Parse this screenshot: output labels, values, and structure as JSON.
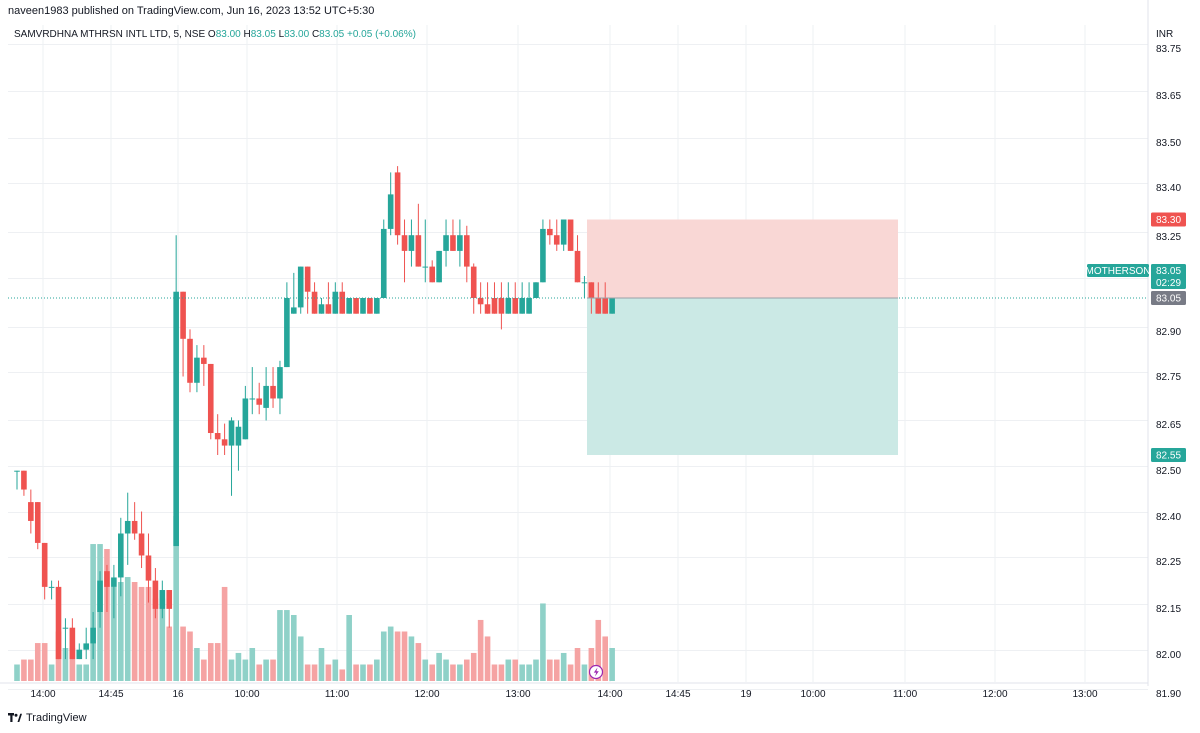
{
  "header": {
    "published": "naveen1983 published on TradingView.com, Jun 16, 2023 13:52 UTC+5:30"
  },
  "legend": {
    "symbol": "SAMVRDHNA MTHRSN INTL LTD, 5, NSE",
    "open_label": "O",
    "open": "83.00",
    "high_label": "H",
    "high": "83.05",
    "low_label": "L",
    "low": "83.00",
    "close_label": "C",
    "close": "83.05",
    "change": "+0.05 (+0.06%)"
  },
  "currency": "INR",
  "brand": "TradingView",
  "colors": {
    "up": "#26a69a",
    "down": "#ef5350",
    "up_volume": "#8fd1c8",
    "down_volume": "#f5a3a3",
    "stop_zone": "#f9d7d5",
    "target_zone": "#cbe9e5",
    "grid": "#eef0f3",
    "current_line": "#26a69a",
    "timer_tag": "#787b86"
  },
  "chart_data": {
    "type": "candlestick",
    "interval": "5",
    "exchange": "NSE",
    "y_ticks": [
      "83.75",
      "83.65",
      "83.50",
      "83.40",
      "83.25",
      "83.00",
      "82.90",
      "82.75",
      "82.65",
      "82.50",
      "82.40",
      "82.25",
      "82.15",
      "82.00",
      "81.90"
    ],
    "x_ticks": [
      "14:00",
      "14:45",
      "16",
      "10:00",
      "11:00",
      "12:00",
      "13:00",
      "14:00",
      "14:45",
      "19",
      "10:00",
      "11:00",
      "12:00",
      "13:00"
    ],
    "candles": [
      {
        "o": 82.5,
        "h": 82.5,
        "l": 82.44,
        "c": 82.5
      },
      {
        "o": 82.5,
        "h": 82.5,
        "l": 82.42,
        "c": 82.44
      },
      {
        "o": 82.4,
        "h": 82.44,
        "l": 82.3,
        "c": 82.34
      },
      {
        "o": 82.4,
        "h": 82.4,
        "l": 82.25,
        "c": 82.27
      },
      {
        "o": 82.27,
        "h": 82.27,
        "l": 82.09,
        "c": 82.13
      },
      {
        "o": 82.13,
        "h": 82.15,
        "l": 82.09,
        "c": 82.13
      },
      {
        "o": 82.13,
        "h": 82.15,
        "l": 81.9,
        "c": 81.9
      },
      {
        "o": 82.0,
        "h": 82.03,
        "l": 81.9,
        "c": 82.0
      },
      {
        "o": 82.0,
        "h": 82.03,
        "l": 81.9,
        "c": 81.9
      },
      {
        "o": 81.9,
        "h": 81.95,
        "l": 81.9,
        "c": 81.93
      },
      {
        "o": 81.93,
        "h": 82.0,
        "l": 81.9,
        "c": 81.95
      },
      {
        "o": 81.95,
        "h": 82.05,
        "l": 81.9,
        "c": 82.0
      },
      {
        "o": 82.05,
        "h": 82.18,
        "l": 82.0,
        "c": 82.15
      },
      {
        "o": 82.18,
        "h": 82.2,
        "l": 82.05,
        "c": 82.13
      },
      {
        "o": 82.13,
        "h": 82.2,
        "l": 82.03,
        "c": 82.16
      },
      {
        "o": 82.16,
        "h": 82.35,
        "l": 82.1,
        "c": 82.3
      },
      {
        "o": 82.3,
        "h": 82.43,
        "l": 82.2,
        "c": 82.34
      },
      {
        "o": 82.34,
        "h": 82.4,
        "l": 82.28,
        "c": 82.3
      },
      {
        "o": 82.3,
        "h": 82.37,
        "l": 82.19,
        "c": 82.23
      },
      {
        "o": 82.23,
        "h": 82.3,
        "l": 82.08,
        "c": 82.15
      },
      {
        "o": 82.15,
        "h": 82.19,
        "l": 82.03,
        "c": 82.06
      },
      {
        "o": 82.06,
        "h": 82.15,
        "l": 82.03,
        "c": 82.12
      },
      {
        "o": 82.12,
        "h": 82.12,
        "l": 82.0,
        "c": 82.06
      },
      {
        "o": 82.26,
        "h": 83.25,
        "l": 82.26,
        "c": 83.07
      },
      {
        "o": 83.07,
        "h": 83.07,
        "l": 82.8,
        "c": 82.92
      },
      {
        "o": 82.92,
        "h": 82.95,
        "l": 82.75,
        "c": 82.78
      },
      {
        "o": 82.78,
        "h": 82.9,
        "l": 82.75,
        "c": 82.86
      },
      {
        "o": 82.86,
        "h": 82.9,
        "l": 82.77,
        "c": 82.84
      },
      {
        "o": 82.84,
        "h": 82.84,
        "l": 82.6,
        "c": 82.62
      },
      {
        "o": 82.62,
        "h": 82.68,
        "l": 82.55,
        "c": 82.6
      },
      {
        "o": 82.6,
        "h": 82.65,
        "l": 82.55,
        "c": 82.58
      },
      {
        "o": 82.58,
        "h": 82.67,
        "l": 82.42,
        "c": 82.66
      },
      {
        "o": 82.58,
        "h": 82.66,
        "l": 82.5,
        "c": 82.64
      },
      {
        "o": 82.6,
        "h": 82.77,
        "l": 82.6,
        "c": 82.73
      },
      {
        "o": 82.73,
        "h": 82.83,
        "l": 82.68,
        "c": 82.73
      },
      {
        "o": 82.73,
        "h": 82.78,
        "l": 82.68,
        "c": 82.71
      },
      {
        "o": 82.7,
        "h": 82.83,
        "l": 82.66,
        "c": 82.77
      },
      {
        "o": 82.77,
        "h": 82.83,
        "l": 82.7,
        "c": 82.73
      },
      {
        "o": 82.73,
        "h": 82.85,
        "l": 82.68,
        "c": 82.83
      },
      {
        "o": 82.83,
        "h": 83.1,
        "l": 82.83,
        "c": 83.05
      },
      {
        "o": 83.0,
        "h": 83.13,
        "l": 83.0,
        "c": 83.02
      },
      {
        "o": 83.02,
        "h": 83.15,
        "l": 83.0,
        "c": 83.15
      },
      {
        "o": 83.15,
        "h": 83.15,
        "l": 83.0,
        "c": 83.07
      },
      {
        "o": 83.07,
        "h": 83.1,
        "l": 83.0,
        "c": 83.0
      },
      {
        "o": 83.0,
        "h": 83.05,
        "l": 83.0,
        "c": 83.03
      },
      {
        "o": 83.03,
        "h": 83.1,
        "l": 83.0,
        "c": 83.0
      },
      {
        "o": 83.0,
        "h": 83.1,
        "l": 83.0,
        "c": 83.07
      },
      {
        "o": 83.07,
        "h": 83.1,
        "l": 83.0,
        "c": 83.0
      },
      {
        "o": 83.0,
        "h": 83.05,
        "l": 83.0,
        "c": 83.05
      },
      {
        "o": 83.05,
        "h": 83.05,
        "l": 83.0,
        "c": 83.0
      },
      {
        "o": 83.0,
        "h": 83.05,
        "l": 83.0,
        "c": 83.05
      },
      {
        "o": 83.05,
        "h": 83.05,
        "l": 83.0,
        "c": 83.0
      },
      {
        "o": 83.0,
        "h": 83.05,
        "l": 83.0,
        "c": 83.05
      },
      {
        "o": 83.05,
        "h": 83.3,
        "l": 83.05,
        "c": 83.27
      },
      {
        "o": 83.27,
        "h": 83.45,
        "l": 83.25,
        "c": 83.38
      },
      {
        "o": 83.45,
        "h": 83.47,
        "l": 83.22,
        "c": 83.25
      },
      {
        "o": 83.25,
        "h": 83.3,
        "l": 83.1,
        "c": 83.2
      },
      {
        "o": 83.2,
        "h": 83.3,
        "l": 83.15,
        "c": 83.25
      },
      {
        "o": 83.25,
        "h": 83.35,
        "l": 83.15,
        "c": 83.15
      },
      {
        "o": 83.15,
        "h": 83.3,
        "l": 83.1,
        "c": 83.15
      },
      {
        "o": 83.15,
        "h": 83.17,
        "l": 83.1,
        "c": 83.1
      },
      {
        "o": 83.1,
        "h": 83.2,
        "l": 83.1,
        "c": 83.2
      },
      {
        "o": 83.2,
        "h": 83.3,
        "l": 83.15,
        "c": 83.25
      },
      {
        "o": 83.25,
        "h": 83.3,
        "l": 83.2,
        "c": 83.2
      },
      {
        "o": 83.2,
        "h": 83.3,
        "l": 83.15,
        "c": 83.25
      },
      {
        "o": 83.25,
        "h": 83.28,
        "l": 83.1,
        "c": 83.15
      },
      {
        "o": 83.15,
        "h": 83.16,
        "l": 83.0,
        "c": 83.05
      },
      {
        "o": 83.05,
        "h": 83.1,
        "l": 83.0,
        "c": 83.03
      },
      {
        "o": 83.03,
        "h": 83.1,
        "l": 83.0,
        "c": 83.0
      },
      {
        "o": 83.05,
        "h": 83.1,
        "l": 83.0,
        "c": 83.0
      },
      {
        "o": 83.05,
        "h": 83.1,
        "l": 82.95,
        "c": 83.0
      },
      {
        "o": 83.0,
        "h": 83.1,
        "l": 83.0,
        "c": 83.05
      },
      {
        "o": 83.05,
        "h": 83.1,
        "l": 83.0,
        "c": 83.0
      },
      {
        "o": 83.0,
        "h": 83.1,
        "l": 83.0,
        "c": 83.05
      },
      {
        "o": 83.0,
        "h": 83.1,
        "l": 83.0,
        "c": 83.05
      },
      {
        "o": 83.05,
        "h": 83.1,
        "l": 83.05,
        "c": 83.1
      },
      {
        "o": 83.1,
        "h": 83.3,
        "l": 83.1,
        "c": 83.27
      },
      {
        "o": 83.27,
        "h": 83.3,
        "l": 83.22,
        "c": 83.25
      },
      {
        "o": 83.25,
        "h": 83.3,
        "l": 83.2,
        "c": 83.22
      },
      {
        "o": 83.22,
        "h": 83.3,
        "l": 83.2,
        "c": 83.3
      },
      {
        "o": 83.3,
        "h": 83.3,
        "l": 83.2,
        "c": 83.2
      },
      {
        "o": 83.2,
        "h": 83.25,
        "l": 83.1,
        "c": 83.1
      },
      {
        "o": 83.1,
        "h": 83.12,
        "l": 83.05,
        "c": 83.1
      },
      {
        "o": 83.1,
        "h": 83.1,
        "l": 83.0,
        "c": 83.05
      },
      {
        "o": 83.05,
        "h": 83.1,
        "l": 83.0,
        "c": 83.0
      },
      {
        "o": 83.05,
        "h": 83.1,
        "l": 83.0,
        "c": 83.0
      },
      {
        "o": 83.0,
        "h": 83.05,
        "l": 83.0,
        "c": 83.05
      }
    ],
    "volume_relative": [
      0.1,
      0.13,
      0.13,
      0.23,
      0.23,
      0.1,
      0.3,
      0.2,
      0.2,
      0.1,
      0.1,
      0.83,
      0.83,
      0.8,
      0.57,
      0.6,
      0.63,
      0.6,
      0.57,
      0.57,
      0.5,
      0.5,
      0.33,
      1.0,
      0.33,
      0.3,
      0.2,
      0.13,
      0.23,
      0.23,
      0.57,
      0.13,
      0.17,
      0.13,
      0.2,
      0.1,
      0.13,
      0.13,
      0.43,
      0.43,
      0.4,
      0.27,
      0.1,
      0.1,
      0.2,
      0.1,
      0.13,
      0.07,
      0.4,
      0.1,
      0.1,
      0.1,
      0.13,
      0.3,
      0.33,
      0.3,
      0.3,
      0.27,
      0.23,
      0.13,
      0.1,
      0.17,
      0.13,
      0.1,
      0.1,
      0.13,
      0.17,
      0.37,
      0.27,
      0.1,
      0.1,
      0.13,
      0.13,
      0.1,
      0.1,
      0.13,
      0.47,
      0.13,
      0.13,
      0.17,
      0.1,
      0.2,
      0.1,
      0.2,
      0.37,
      0.27,
      0.2
    ],
    "current_price": "83.05",
    "current_label": "MOTHERSON",
    "countdown": "02:29",
    "position": {
      "stop": "83.30",
      "entry": "83.05",
      "target": "82.55"
    }
  }
}
